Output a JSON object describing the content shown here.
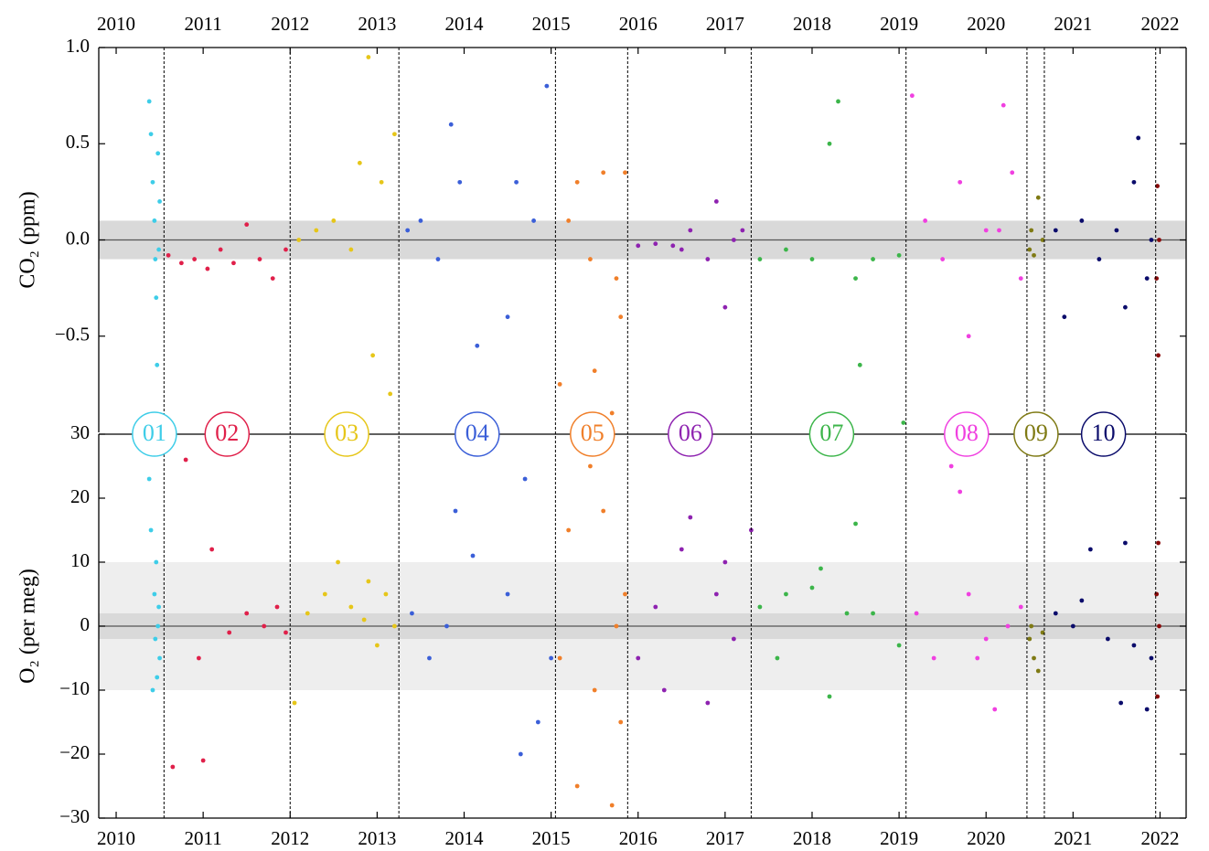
{
  "chart_data": [
    {
      "type": "scatter",
      "ylabel": "CO₂ (ppm)",
      "xlim": [
        2009.8,
        2022.3
      ],
      "ylim": [
        -1,
        1
      ],
      "xticks": [
        2010,
        2011,
        2012,
        2013,
        2014,
        2015,
        2016,
        2017,
        2018,
        2019,
        2020,
        2021,
        2022
      ],
      "yticks": [
        {
          "value": -0.5,
          "label": "−0.5"
        },
        {
          "value": 0,
          "label": "0.0"
        },
        0.5,
        {
          "value": 1,
          "label": "1.0"
        }
      ],
      "bands": [
        {
          "lo": -0.1,
          "hi": 0.1,
          "color": "#d9d9d9"
        }
      ],
      "hline": 0,
      "boundaries": [
        2010.55,
        2012.0,
        2013.25,
        2015.05,
        2015.88,
        2017.3,
        2019.08,
        2020.47,
        2020.67,
        2021.95
      ],
      "series": [
        {
          "name": "01",
          "color": "#3ecde8",
          "x": [
            2010.38,
            2010.4,
            2010.42,
            2010.44,
            2010.45,
            2010.46,
            2010.47,
            2010.48,
            2010.49,
            2010.5
          ],
          "values": [
            0.72,
            0.55,
            0.3,
            0.1,
            -0.1,
            -0.3,
            -0.65,
            0.45,
            -0.05,
            0.2
          ]
        },
        {
          "name": "02",
          "color": "#e0204a",
          "x": [
            2010.6,
            2010.75,
            2010.9,
            2011.05,
            2011.2,
            2011.35,
            2011.5,
            2011.65,
            2011.8,
            2011.95
          ],
          "values": [
            -0.08,
            -0.12,
            -0.1,
            -0.15,
            -0.05,
            -0.12,
            0.08,
            -0.1,
            -0.2,
            -0.05
          ]
        },
        {
          "name": "03",
          "color": "#e6c619",
          "x": [
            2012.1,
            2012.3,
            2012.5,
            2012.7,
            2012.8,
            2012.9,
            2012.95,
            2013.05,
            2013.15,
            2013.2
          ],
          "values": [
            0,
            0.05,
            0.1,
            -0.05,
            0.4,
            0.95,
            -0.6,
            0.3,
            -0.8,
            0.55
          ]
        },
        {
          "name": "04",
          "color": "#3b5fd8",
          "x": [
            2013.35,
            2013.5,
            2013.7,
            2013.85,
            2013.95,
            2014.15,
            2014.5,
            2014.6,
            2014.8,
            2014.95
          ],
          "values": [
            0.05,
            0.1,
            -0.1,
            0.6,
            0.3,
            -0.55,
            -0.4,
            0.3,
            0.1,
            0.8
          ]
        },
        {
          "name": "05",
          "color": "#f07f2a",
          "x": [
            2015.1,
            2015.2,
            2015.3,
            2015.45,
            2015.5,
            2015.6,
            2015.7,
            2015.75,
            2015.85,
            2015.8
          ],
          "values": [
            -0.75,
            0.1,
            0.3,
            -0.1,
            -0.68,
            0.35,
            -0.9,
            -0.2,
            0.35,
            -0.4
          ]
        },
        {
          "name": "06",
          "color": "#8e22b0",
          "x": [
            2016.0,
            2016.2,
            2016.5,
            2016.6,
            2016.8,
            2016.9,
            2017.0,
            2017.1,
            2017.2,
            2016.4
          ],
          "values": [
            -0.03,
            -0.02,
            -0.05,
            0.05,
            -0.1,
            0.2,
            -0.35,
            0,
            0.05,
            -0.03
          ]
        },
        {
          "name": "07",
          "color": "#3cb54a",
          "x": [
            2017.4,
            2017.7,
            2018.0,
            2018.2,
            2018.3,
            2018.5,
            2018.55,
            2018.7,
            2019.0,
            2019.05
          ],
          "values": [
            -0.1,
            -0.05,
            -0.1,
            0.5,
            0.72,
            -0.2,
            -0.65,
            -0.1,
            -0.08,
            -0.95
          ]
        },
        {
          "name": "08",
          "color": "#f040e0",
          "x": [
            2019.15,
            2019.3,
            2019.5,
            2019.7,
            2019.8,
            2020.0,
            2020.15,
            2020.2,
            2020.3,
            2020.4
          ],
          "values": [
            0.75,
            0.1,
            -0.1,
            0.3,
            -0.5,
            0.05,
            0.05,
            0.7,
            0.35,
            -0.2
          ]
        },
        {
          "name": "09",
          "color": "#7f7a14",
          "x": [
            2020.5,
            2020.55,
            2020.6,
            2020.65,
            2020.52
          ],
          "values": [
            -0.05,
            -0.08,
            0.22,
            0,
            0.05
          ]
        },
        {
          "name": "10",
          "color": "#0b0c6b",
          "x": [
            2020.8,
            2020.9,
            2021.1,
            2021.3,
            2021.5,
            2021.6,
            2021.7,
            2021.75,
            2021.85,
            2021.9
          ],
          "values": [
            0.05,
            -0.4,
            0.1,
            -0.1,
            0.05,
            -0.35,
            0.3,
            0.53,
            -0.2,
            0
          ]
        },
        {
          "color": "#8b0a0a",
          "x": [
            2021.97,
            2021.98,
            2021.99,
            2021.96
          ],
          "values": [
            0.28,
            -0.6,
            0,
            -0.2
          ]
        }
      ]
    },
    {
      "type": "scatter",
      "ylabel": "O₂ (per meg)",
      "xlim": [
        2009.8,
        2022.3
      ],
      "ylim": [
        -30,
        30
      ],
      "xticks": [
        2010,
        2011,
        2012,
        2013,
        2014,
        2015,
        2016,
        2017,
        2018,
        2019,
        2020,
        2021,
        2022
      ],
      "yticks": [
        {
          "value": -30,
          "label": "−30"
        },
        {
          "value": -20,
          "label": "−20"
        },
        {
          "value": -10,
          "label": "−10"
        },
        0,
        10,
        20,
        30
      ],
      "bands": [
        {
          "lo": -10,
          "hi": 10,
          "color": "#eeeeee"
        },
        {
          "lo": -2,
          "hi": 2,
          "color": "#d9d9d9"
        }
      ],
      "hline": 0,
      "series": [
        {
          "color": "#3ecde8",
          "x": [
            2010.38,
            2010.4,
            2010.42,
            2010.44,
            2010.45,
            2010.46,
            2010.47,
            2010.48,
            2010.49,
            2010.5
          ],
          "values": [
            23,
            15,
            -10,
            5,
            -2,
            10,
            -8,
            0,
            3,
            -5
          ]
        },
        {
          "color": "#e0204a",
          "x": [
            2010.65,
            2010.8,
            2010.95,
            2011.0,
            2011.1,
            2011.3,
            2011.5,
            2011.7,
            2011.85,
            2011.95
          ],
          "values": [
            -22,
            26,
            -5,
            -21,
            12,
            -1,
            2,
            0,
            3,
            -1
          ]
        },
        {
          "color": "#e6c619",
          "x": [
            2012.05,
            2012.2,
            2012.4,
            2012.55,
            2012.7,
            2012.85,
            2013.0,
            2013.1,
            2013.2,
            2012.9
          ],
          "values": [
            -12,
            2,
            5,
            10,
            3,
            1,
            -3,
            5,
            0,
            7
          ]
        },
        {
          "color": "#3b5fd8",
          "x": [
            2013.4,
            2013.6,
            2013.9,
            2014.1,
            2014.5,
            2014.7,
            2014.65,
            2014.85,
            2015.0,
            2013.8
          ],
          "values": [
            2,
            -5,
            18,
            11,
            5,
            23,
            -20,
            -15,
            -5,
            0
          ]
        },
        {
          "color": "#f07f2a",
          "x": [
            2015.1,
            2015.2,
            2015.3,
            2015.45,
            2015.5,
            2015.6,
            2015.7,
            2015.75,
            2015.8,
            2015.85
          ],
          "values": [
            -5,
            15,
            -25,
            25,
            -10,
            18,
            -28,
            0,
            -15,
            5
          ]
        },
        {
          "color": "#8e22b0",
          "x": [
            2016.0,
            2016.2,
            2016.5,
            2016.6,
            2016.8,
            2016.9,
            2017.0,
            2017.1,
            2017.3,
            2016.3
          ],
          "values": [
            -5,
            3,
            12,
            17,
            -12,
            5,
            10,
            -2,
            15,
            -10
          ]
        },
        {
          "color": "#3cb54a",
          "x": [
            2017.4,
            2017.7,
            2018.0,
            2018.2,
            2018.4,
            2018.5,
            2018.7,
            2019.0,
            2017.6,
            2018.1
          ],
          "values": [
            3,
            5,
            6,
            -11,
            2,
            16,
            2,
            -3,
            -5,
            9
          ]
        },
        {
          "color": "#f040e0",
          "x": [
            2019.2,
            2019.4,
            2019.6,
            2019.7,
            2019.8,
            2020.0,
            2020.1,
            2020.25,
            2020.4,
            2019.9
          ],
          "values": [
            2,
            -5,
            25,
            21,
            5,
            -2,
            -13,
            0,
            3,
            -5
          ]
        },
        {
          "color": "#7f7a14",
          "x": [
            2020.5,
            2020.55,
            2020.6,
            2020.65,
            2020.52
          ],
          "values": [
            -2,
            -5,
            -7,
            -1,
            0
          ]
        },
        {
          "color": "#0b0c6b",
          "x": [
            2020.8,
            2021.0,
            2021.2,
            2021.4,
            2021.55,
            2021.6,
            2021.7,
            2021.85,
            2021.9,
            2021.1
          ],
          "values": [
            2,
            0,
            12,
            -2,
            -12,
            13,
            -3,
            -13,
            -5,
            4
          ]
        },
        {
          "color": "#8b0a0a",
          "x": [
            2021.98,
            2021.97,
            2021.99,
            2021.96
          ],
          "values": [
            13,
            -11,
            0,
            5
          ]
        }
      ]
    }
  ]
}
